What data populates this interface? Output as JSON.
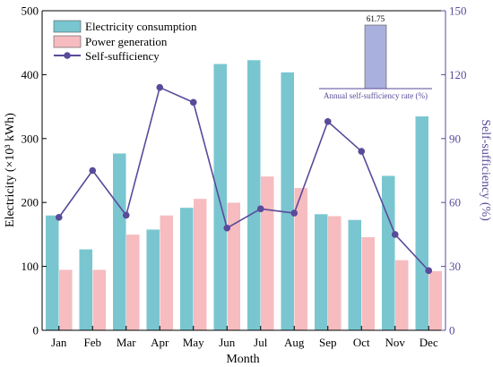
{
  "chart_data": {
    "type": "bar",
    "categories": [
      "Jan",
      "Feb",
      "Mar",
      "Apr",
      "May",
      "Jun",
      "Jul",
      "Aug",
      "Sep",
      "Oct",
      "Nov",
      "Dec"
    ],
    "series": [
      {
        "name": "Electricity consumption",
        "values": [
          180,
          127,
          277,
          158,
          192,
          417,
          423,
          404,
          182,
          173,
          242,
          335
        ],
        "color": "#79c6d0"
      },
      {
        "name": "Power generation",
        "values": [
          95,
          95,
          150,
          180,
          206,
          200,
          241,
          223,
          179,
          146,
          110,
          93
        ],
        "color": "#f6bcbf"
      },
      {
        "name": "Self-sufficiency",
        "values": [
          53,
          75,
          54,
          114,
          107,
          48,
          57,
          55,
          98,
          84,
          45,
          28
        ],
        "color": "#5a4a9a",
        "axis": "right"
      }
    ],
    "xlabel": "Month",
    "ylabel_left": "Electricity (×10³ kWh)",
    "ylabel_right": "Self-sufficiency (%)",
    "ylim_left": [
      0,
      500
    ],
    "yticks_left": [
      0,
      100,
      200,
      300,
      400,
      500
    ],
    "ylim_right": [
      0,
      150
    ],
    "yticks_right": [
      0,
      30,
      60,
      90,
      120,
      150
    ],
    "legend_position": "top-left",
    "inset": {
      "label": "Annual self-sufficiency rate (%)",
      "value": 61.75,
      "color": "#a9b0dd"
    }
  }
}
